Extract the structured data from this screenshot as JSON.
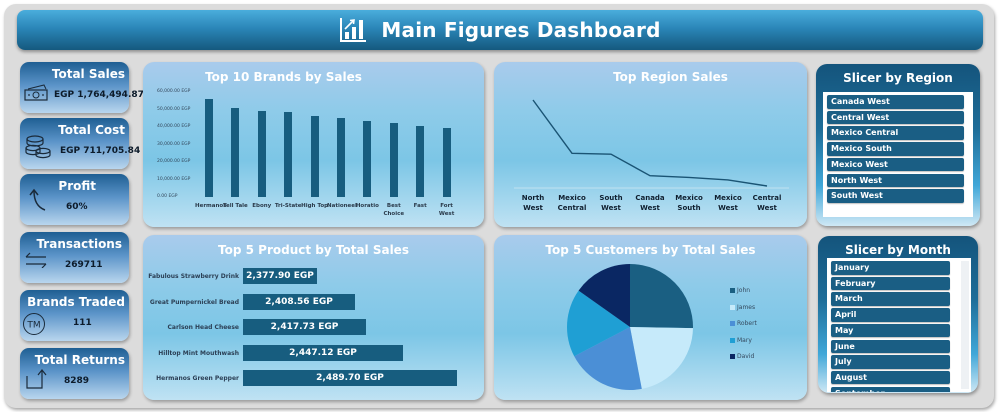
{
  "header": {
    "title": "Main Figures Dashboard",
    "icon": "bar-chart-growth-icon"
  },
  "kpis": [
    {
      "title": "Total Sales",
      "value": "EGP 1,764,494.87",
      "icon": "cash-icon"
    },
    {
      "title": "Total Cost",
      "value": "EGP 711,705.84",
      "icon": "coins-icon"
    },
    {
      "title": "Profit",
      "value": "60%",
      "icon": "curved-arrow-up-icon"
    },
    {
      "title": "Transactions",
      "value": "269711",
      "icon": "exchange-arrows-icon"
    },
    {
      "title": "Brands Traded",
      "value": "111",
      "icon": "trademark-icon"
    },
    {
      "title": "Total Returns",
      "value": "8289",
      "icon": "return-arrow-icon"
    }
  ],
  "brands_chart": {
    "title": "Top 10 Brands by Sales",
    "y_ticks": [
      "60,000.00 EGP",
      "50,000.00 EGP",
      "40,000.00 EGP",
      "30,000.00 EGP",
      "20,000.00 EGP",
      "10,000.00 EGP",
      "0.00 EGP"
    ],
    "categories": [
      "Hermanos",
      "Tell Tale",
      "Ebony",
      "Tri-State",
      "High Top",
      "Nationeel",
      "Horatio",
      "Best Choice",
      "Fast",
      "Fort West"
    ],
    "values": [
      56000,
      51000,
      49000,
      48500,
      46500,
      45000,
      43500,
      42500,
      40500,
      39500
    ]
  },
  "region_chart": {
    "title": "Top Region Sales",
    "categories": [
      "North West",
      "Mexico Central",
      "South West",
      "Canada West",
      "Mexico South",
      "Mexico West",
      "Central West"
    ],
    "values": [
      100,
      38,
      37,
      12,
      10,
      7,
      0
    ]
  },
  "products_chart": {
    "title": "Top 5 Product by Total Sales",
    "items": [
      {
        "name": "Fabulous Strawberry Drink",
        "value": 2377.9,
        "label": "2,377.90 EGP"
      },
      {
        "name": "Great Pumpernickel Bread",
        "value": 2408.56,
        "label": "2,408.56 EGP"
      },
      {
        "name": "Carlson Head Cheese",
        "value": 2417.73,
        "label": "2,417.73 EGP"
      },
      {
        "name": "Hilltop Mint Mouthwash",
        "value": 2447.12,
        "label": "2,447.12 EGP"
      },
      {
        "name": "Hermanos Green Pepper",
        "value": 2489.7,
        "label": "2,489.70 EGP"
      }
    ]
  },
  "customers_chart": {
    "title": "Top 5 Customers by Total Sales",
    "slices": [
      {
        "name": "John",
        "share": 25.3,
        "color": "#1a5f82"
      },
      {
        "name": "James",
        "share": 21.7,
        "color": "#c6eafa"
      },
      {
        "name": "Robert",
        "share": 20.3,
        "color": "#4b8fd6"
      },
      {
        "name": "Mary",
        "share": 17.5,
        "color": "#1f9fd4"
      },
      {
        "name": "David",
        "share": 15.2,
        "color": "#0a2763"
      }
    ]
  },
  "slicer_region": {
    "title": "Slicer by Region",
    "items": [
      "Canada West",
      "Central West",
      "Mexico Central",
      "Mexico South",
      "Mexico West",
      "North West",
      "South West"
    ]
  },
  "slicer_month": {
    "title": "Slicer by Month",
    "items": [
      "January",
      "February",
      "March",
      "April",
      "May",
      "June",
      "July",
      "August",
      "September"
    ]
  },
  "colors": {
    "bar": "#175d7f",
    "header_top": "#4aaddc",
    "header_bottom": "#15597e",
    "slicer_item": "#1a5e84"
  },
  "chart_data": [
    {
      "type": "bar",
      "title": "Top 10 Brands by Sales",
      "categories": [
        "Hermanos",
        "Tell Tale",
        "Ebony",
        "Tri-State",
        "High Top",
        "Nationeel",
        "Horatio",
        "Best Choice",
        "Fast",
        "Fort West"
      ],
      "values": [
        56000,
        51000,
        49000,
        48500,
        46500,
        45000,
        43500,
        42500,
        40500,
        39500
      ],
      "xlabel": "",
      "ylabel": "",
      "ylim": [
        0,
        60000
      ],
      "y_tick_format": "0.00 EGP",
      "grid": false,
      "legend": "none"
    },
    {
      "type": "line",
      "title": "Top Region Sales",
      "categories": [
        "North West",
        "Mexico Central",
        "South West",
        "Canada West",
        "Mexico South",
        "Mexico West",
        "Central West"
      ],
      "values_relative": [
        100,
        38,
        37,
        12,
        10,
        7,
        0
      ],
      "note": "No y-axis shown; values are relative heights",
      "grid": false,
      "legend": "none"
    },
    {
      "type": "bar",
      "orientation": "horizontal",
      "title": "Top 5 Product by Total Sales",
      "categories": [
        "Fabulous Strawberry Drink",
        "Great Pumpernickel Bread",
        "Carlson Head Cheese",
        "Hilltop Mint Mouthwash",
        "Hermanos Green Pepper"
      ],
      "values": [
        2377.9,
        2408.56,
        2417.73,
        2447.12,
        2489.7
      ],
      "data_labels": [
        "2,377.90 EGP",
        "2,408.56 EGP",
        "2,417.73 EGP",
        "2,447.12 EGP",
        "2,489.70 EGP"
      ]
    },
    {
      "type": "pie",
      "title": "Top 5 Customers by Total Sales",
      "labels": [
        "John",
        "James",
        "Robert",
        "Mary",
        "David"
      ],
      "values": [
        25.3,
        21.7,
        20.3,
        17.5,
        15.2
      ],
      "legend": "right"
    }
  ]
}
